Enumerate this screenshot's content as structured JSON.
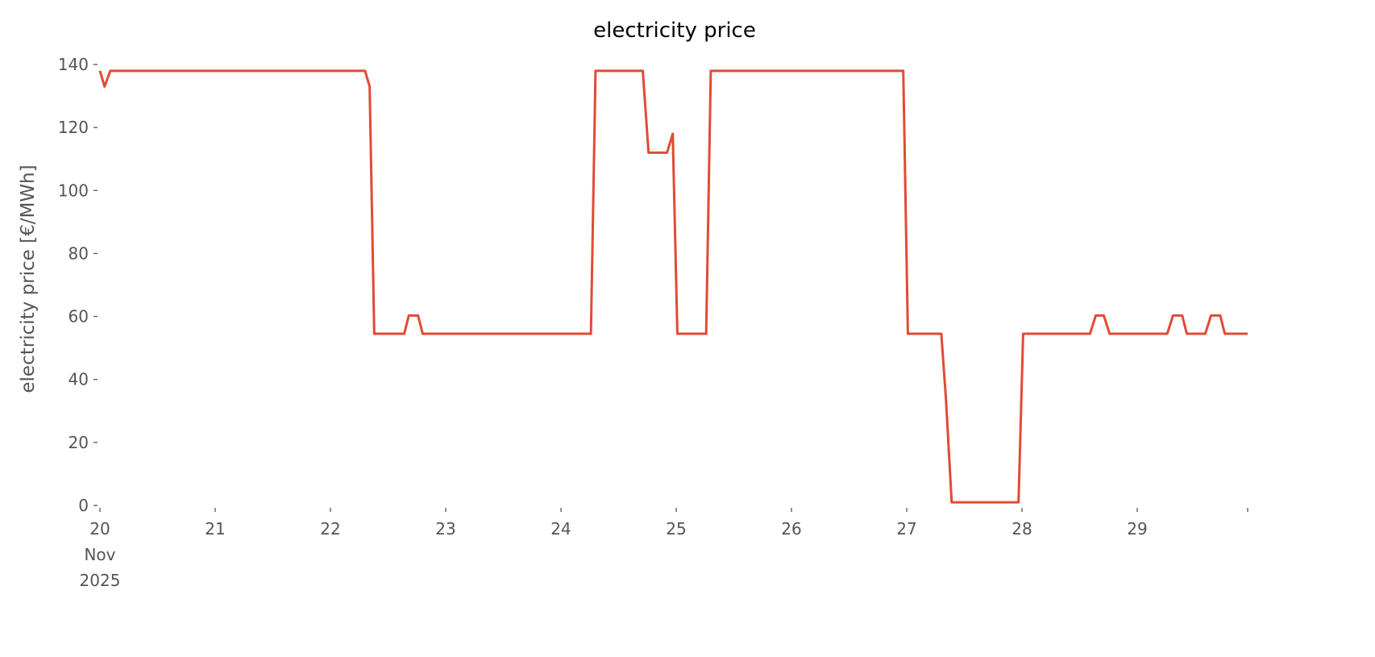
{
  "chart_data": {
    "type": "line",
    "title": "electricity price",
    "ylabel": "electricity price [€/MWh]",
    "x": [
      20.0,
      20.04,
      20.09,
      22.3,
      22.34,
      22.38,
      22.64,
      22.68,
      22.76,
      22.8,
      24.26,
      24.3,
      24.71,
      24.76,
      24.92,
      24.97,
      25.01,
      25.26,
      25.3,
      26.97,
      27.01,
      27.3,
      27.34,
      27.39,
      27.97,
      28.01,
      28.59,
      28.64,
      28.71,
      28.76,
      29.26,
      29.31,
      29.39,
      29.43,
      29.59,
      29.64,
      29.72,
      29.76,
      29.958
    ],
    "series": [
      {
        "name": "electricity price",
        "color": "#e24a33",
        "values": [
          138,
          133,
          138,
          138,
          133,
          54.5,
          54.5,
          60.3,
          60.3,
          54.5,
          54.5,
          138,
          138,
          112,
          112,
          118,
          54.5,
          54.5,
          138,
          138,
          54.5,
          54.5,
          34,
          1,
          1,
          54.5,
          54.5,
          60.3,
          60.3,
          54.5,
          54.5,
          60.3,
          60.3,
          54.5,
          54.5,
          60.3,
          60.3,
          54.5,
          54.5
        ]
      }
    ],
    "xlim": [
      20,
      29.958
    ],
    "xticks": [
      {
        "value": 20,
        "label": "20 Nov 2025"
      },
      21,
      22,
      23,
      24,
      25,
      26,
      27,
      28,
      29,
      {
        "value": 29.958,
        "label": null
      }
    ],
    "ylim": [
      0,
      140
    ],
    "yticks": [
      0,
      20,
      40,
      60,
      80,
      100,
      120,
      140
    ],
    "grid": false
  }
}
